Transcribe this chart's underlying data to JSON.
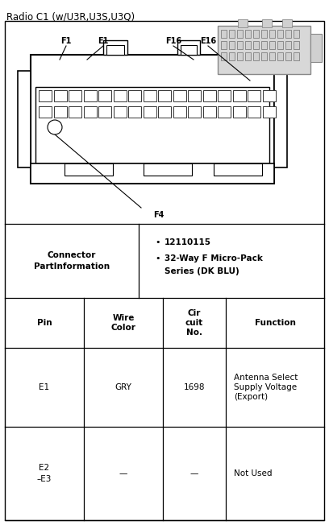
{
  "title": "Radio C1 (w/U3R,U3S,U3Q)",
  "background_color": "#ffffff",
  "fig_width": 4.08,
  "fig_height": 6.52,
  "dpi": 100,
  "connector_label_line1": "Connector",
  "connector_label_line2": "PartInformation",
  "part_bullet1": "12110115",
  "part_bullet2": "32-Way F Micro-Pack",
  "part_bullet2b": "Series (DK BLU)",
  "header_pin": "Pin",
  "header_wire": "Wire\nColor",
  "header_circuit": "Cir\ncuit\nNo.",
  "header_function": "Function",
  "row1_pin": "E1",
  "row1_wire": "GRY",
  "row1_circuit": "1698",
  "row1_func1": "Antenna Select",
  "row1_func2": "Supply Voltage",
  "row1_func3": "(Export)",
  "row2_pin1": "E2",
  "row2_pin2": "–E3",
  "row2_wire": "—",
  "row2_circuit": "—",
  "row2_function": "Not Used",
  "text_color": "#000000",
  "label_F1": "F1",
  "label_E1": "E1",
  "label_F16": "F16",
  "label_E16": "E16",
  "label_F4": "F4"
}
